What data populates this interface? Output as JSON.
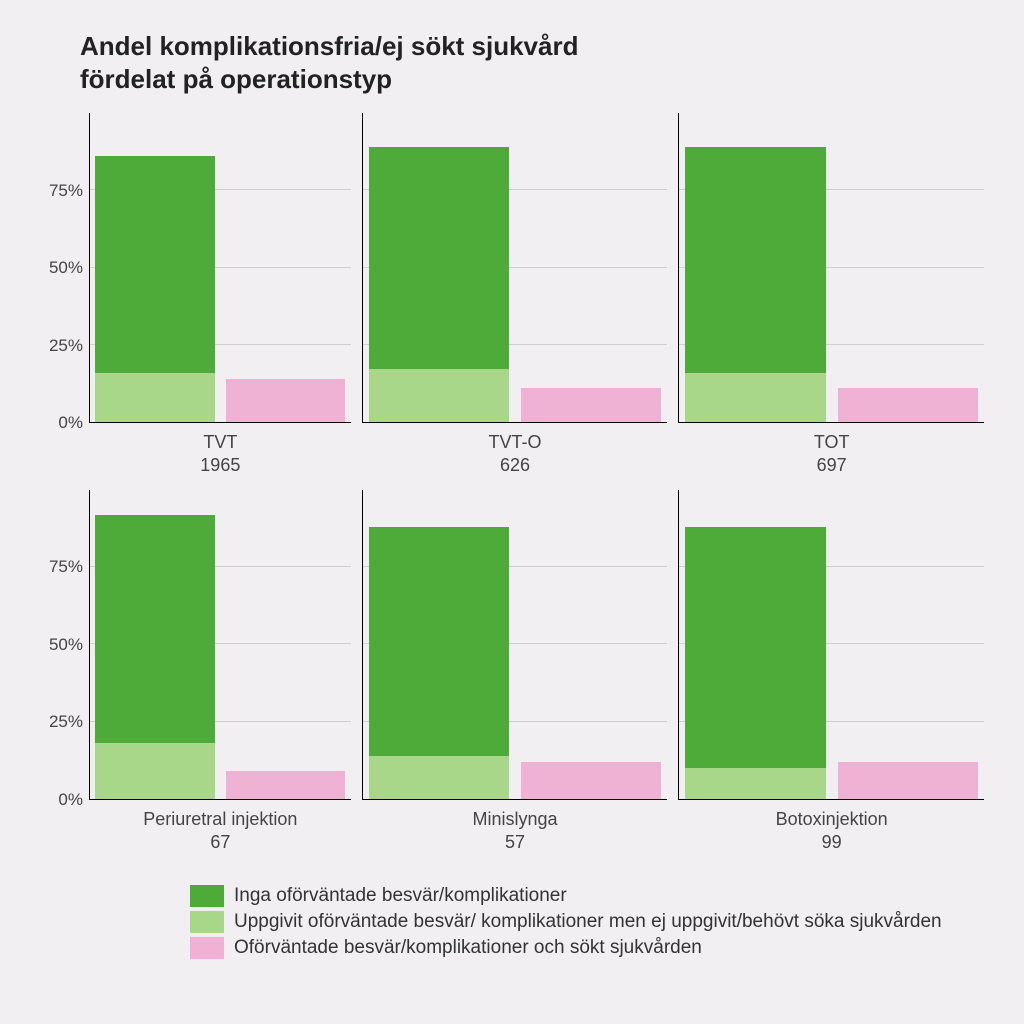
{
  "title_line1": "Andel komplikationsfria/ej sökt sjukvård",
  "title_line2": "fördelat på operationstyp",
  "chart": {
    "type": "bar",
    "ylim": [
      0,
      100
    ],
    "yticks": [
      0,
      25,
      50,
      75
    ],
    "ytick_labels": [
      "0%",
      "25%",
      "50%",
      "75%"
    ],
    "grid_color": "#cfcfcf",
    "axis_color": "#000000",
    "background_color": "#f1eff2",
    "label_fontsize": 18,
    "tick_fontsize": 17,
    "colors": {
      "dark_green": "#4eaa39",
      "light_green": "#a8d78a",
      "pink": "#efb2d5"
    },
    "panels": [
      {
        "name": "TVT",
        "n": "1965",
        "stack": {
          "light_green": 16,
          "dark_green": 70
        },
        "single": {
          "pink": 14
        }
      },
      {
        "name": "TVT-O",
        "n": "626",
        "stack": {
          "light_green": 17,
          "dark_green": 72
        },
        "single": {
          "pink": 11
        }
      },
      {
        "name": "TOT",
        "n": "697",
        "stack": {
          "light_green": 16,
          "dark_green": 73
        },
        "single": {
          "pink": 11
        }
      },
      {
        "name": "Periuretral injektion",
        "n": "67",
        "stack": {
          "light_green": 18,
          "dark_green": 74
        },
        "single": {
          "pink": 9
        }
      },
      {
        "name": "Minislynga",
        "n": "57",
        "stack": {
          "light_green": 14,
          "dark_green": 74
        },
        "single": {
          "pink": 12
        }
      },
      {
        "name": "Botoxinjektion",
        "n": "99",
        "stack": {
          "light_green": 10,
          "dark_green": 78
        },
        "single": {
          "pink": 12
        }
      }
    ]
  },
  "legend": [
    {
      "color": "#4eaa39",
      "label": "Inga oförväntade besvär/komplikationer"
    },
    {
      "color": "#a8d78a",
      "label": "Uppgivit oförväntade besvär/ komplikationer men ej uppgivit/behövt söka sjukvården"
    },
    {
      "color": "#efb2d5",
      "label": "Oförväntade besvär/komplikationer och sökt sjukvården"
    }
  ]
}
